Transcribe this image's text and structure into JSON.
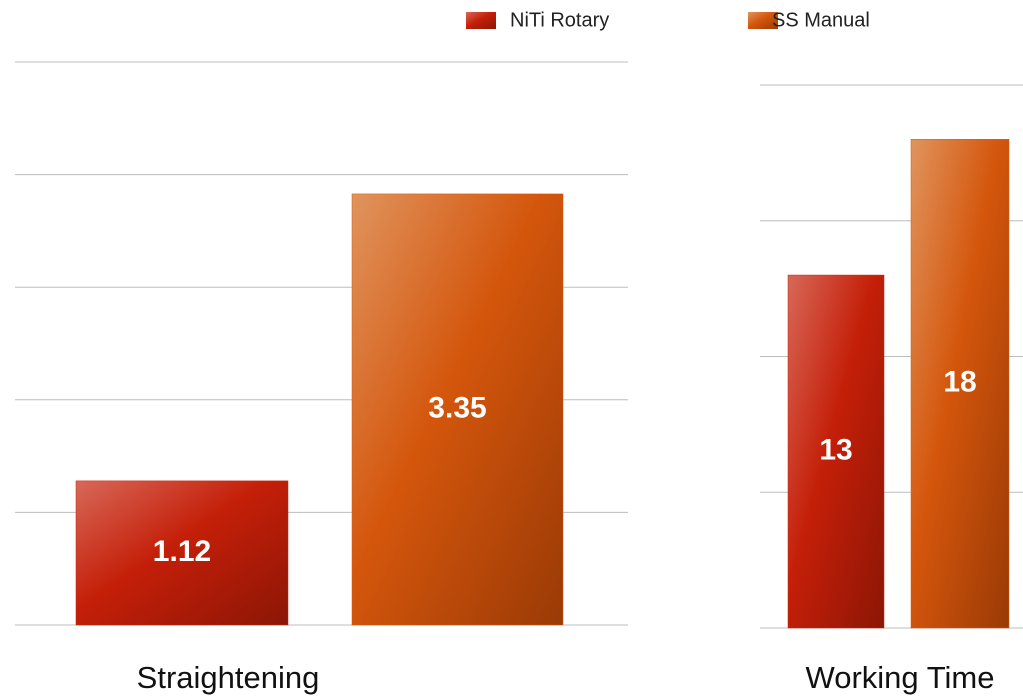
{
  "chart_data": [
    {
      "type": "bar",
      "categories": [
        "Straightening"
      ],
      "series": [
        {
          "name": "NiTi Rotary",
          "color": "#c4230c",
          "values": [
            1.12
          ]
        },
        {
          "name": "SS Manual",
          "color": "#d4580f",
          "values": [
            3.35
          ]
        }
      ],
      "ylim": [
        0,
        4.375
      ],
      "yticks": [
        0,
        0.875,
        1.75,
        2.625,
        3.5,
        4.375
      ],
      "grid": true,
      "legend": "top"
    },
    {
      "type": "bar",
      "categories": [
        "Working Time"
      ],
      "series": [
        {
          "color": "#c4230c",
          "values": [
            13
          ]
        },
        {
          "color": "#d4580f",
          "values": [
            18
          ]
        }
      ],
      "ylim": [
        0,
        20
      ],
      "yticks": [
        0,
        5,
        10,
        15,
        20
      ],
      "grid": true
    }
  ]
}
